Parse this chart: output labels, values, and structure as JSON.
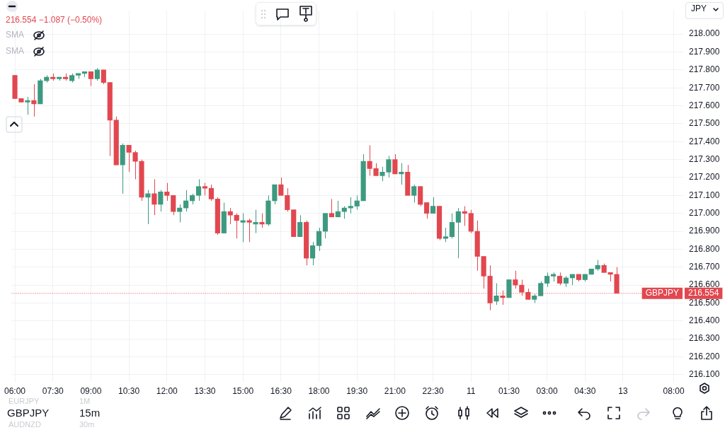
{
  "chart_data": {
    "type": "candlestick",
    "categories": [
      "06:00",
      null,
      null,
      null,
      null,
      null,
      "07:30",
      null,
      null,
      null,
      null,
      null,
      "09:00",
      null,
      null,
      null,
      null,
      null,
      "10:30",
      null,
      null,
      null,
      null,
      null,
      "12:00",
      null,
      null,
      null,
      null,
      null,
      "13:30",
      null,
      null,
      null,
      null,
      null,
      "15:00",
      null,
      null,
      null,
      null,
      null,
      "16:30",
      null,
      null,
      null,
      null,
      null,
      "18:00",
      null,
      null,
      null,
      null,
      null,
      "19:30",
      null,
      null,
      null,
      null,
      null,
      "21:00",
      null,
      null,
      null,
      null,
      null,
      "22:30",
      null,
      null,
      null,
      null,
      null,
      "11",
      null,
      null,
      null,
      null,
      null,
      "01:30",
      null,
      null,
      null,
      null,
      null,
      "03:00",
      null,
      null,
      null,
      null,
      null,
      "04:30",
      null,
      null,
      null,
      null,
      null,
      "13",
      null,
      null,
      null,
      null,
      null,
      null,
      null,
      "08:00",
      null
    ],
    "ohlc": [
      [
        217.77,
        217.77,
        217.64,
        217.64
      ],
      [
        217.64,
        217.64,
        217.62,
        217.62
      ],
      [
        217.62,
        217.65,
        217.55,
        217.63
      ],
      [
        217.63,
        217.72,
        217.54,
        217.61
      ],
      [
        217.61,
        217.75,
        217.61,
        217.74
      ],
      [
        217.74,
        217.77,
        217.73,
        217.76
      ],
      [
        217.76,
        217.78,
        217.74,
        217.75
      ],
      [
        217.75,
        217.76,
        217.74,
        217.76
      ],
      [
        217.76,
        217.78,
        217.74,
        217.75
      ],
      [
        217.74,
        217.78,
        217.73,
        217.77
      ],
      [
        217.77,
        217.78,
        217.75,
        217.78
      ],
      [
        217.78,
        217.79,
        217.76,
        217.79
      ],
      [
        217.79,
        217.79,
        217.71,
        217.75
      ],
      [
        217.75,
        217.81,
        217.74,
        217.8
      ],
      [
        217.8,
        217.8,
        217.72,
        217.73
      ],
      [
        217.73,
        217.73,
        217.32,
        217.52
      ],
      [
        217.52,
        217.54,
        217.27,
        217.27
      ],
      [
        217.27,
        217.39,
        217.11,
        217.38
      ],
      [
        217.38,
        217.38,
        217.23,
        217.34
      ],
      [
        217.34,
        217.35,
        217.19,
        217.29
      ],
      [
        217.29,
        217.3,
        217.07,
        217.09
      ],
      [
        217.09,
        217.13,
        216.94,
        217.11
      ],
      [
        217.11,
        217.19,
        216.99,
        217.05
      ],
      [
        217.05,
        217.13,
        217.01,
        217.12
      ],
      [
        217.12,
        217.17,
        217.07,
        217.1
      ],
      [
        217.1,
        217.1,
        216.99,
        217.01
      ],
      [
        217.01,
        217.05,
        216.95,
        217.03
      ],
      [
        217.03,
        217.13,
        217.01,
        217.07
      ],
      [
        217.07,
        217.11,
        217.05,
        217.1
      ],
      [
        217.1,
        217.19,
        217.07,
        217.15
      ],
      [
        217.15,
        217.17,
        217.1,
        217.14
      ],
      [
        217.14,
        217.16,
        217.07,
        217.08
      ],
      [
        217.08,
        217.09,
        216.88,
        216.89
      ],
      [
        216.89,
        217.06,
        216.89,
        217.01
      ],
      [
        217.01,
        217.03,
        216.94,
        216.99
      ],
      [
        216.99,
        217,
        216.86,
        216.96
      ],
      [
        216.95,
        217,
        216.84,
        216.96
      ],
      [
        216.96,
        216.97,
        216.84,
        216.95
      ],
      [
        216.94,
        217.02,
        216.89,
        216.95
      ],
      [
        216.95,
        217,
        216.92,
        216.94
      ],
      [
        216.94,
        217.1,
        216.93,
        217.07
      ],
      [
        217.07,
        217.16,
        217.05,
        217.16
      ],
      [
        217.16,
        217.2,
        217.1,
        217.1
      ],
      [
        217.1,
        217.14,
        217.01,
        217.02
      ],
      [
        217.02,
        217.02,
        216.87,
        216.87
      ],
      [
        216.87,
        216.99,
        216.87,
        216.95
      ],
      [
        216.95,
        216.96,
        216.71,
        216.75
      ],
      [
        216.75,
        216.84,
        216.71,
        216.82
      ],
      [
        216.82,
        216.92,
        216.79,
        216.9
      ],
      [
        216.9,
        217,
        216.86,
        217
      ],
      [
        217,
        217.08,
        216.98,
        216.98
      ],
      [
        216.98,
        217.07,
        216.98,
        217.01
      ],
      [
        217.01,
        217.04,
        216.97,
        217.03
      ],
      [
        217.03,
        217.09,
        217,
        217.04
      ],
      [
        217.04,
        217.1,
        217.02,
        217.07
      ],
      [
        217.07,
        217.33,
        217.07,
        217.29
      ],
      [
        217.29,
        217.38,
        217.21,
        217.25
      ],
      [
        217.25,
        217.28,
        217.21,
        217.21
      ],
      [
        217.21,
        217.26,
        217.18,
        217.23
      ],
      [
        217.23,
        217.32,
        217.2,
        217.3
      ],
      [
        217.3,
        217.33,
        217.22,
        217.22
      ],
      [
        217.22,
        217.28,
        217.16,
        217.23
      ],
      [
        217.23,
        217.27,
        217.1,
        217.1
      ],
      [
        217.1,
        217.16,
        217.06,
        217.15
      ],
      [
        217.15,
        217.15,
        217.04,
        217.05
      ],
      [
        217.06,
        217.06,
        216.97,
        217
      ],
      [
        217,
        217.09,
        217,
        217.04
      ],
      [
        217.04,
        217.04,
        216.85,
        216.86
      ],
      [
        216.86,
        216.92,
        216.84,
        216.87
      ],
      [
        216.87,
        217,
        216.86,
        216.95
      ],
      [
        216.95,
        217.03,
        216.75,
        217.01
      ],
      [
        217.01,
        217.04,
        216.93,
        217
      ],
      [
        217,
        217.02,
        216.89,
        216.9
      ],
      [
        216.9,
        216.96,
        216.68,
        216.76
      ],
      [
        216.76,
        216.76,
        216.58,
        216.65
      ],
      [
        216.65,
        216.71,
        216.46,
        216.5
      ],
      [
        216.51,
        216.61,
        216.49,
        216.54
      ],
      [
        216.54,
        216.57,
        216.49,
        216.53
      ],
      [
        216.53,
        216.63,
        216.53,
        216.63
      ],
      [
        216.63,
        216.68,
        216.58,
        216.6
      ],
      [
        216.6,
        216.63,
        216.54,
        216.56
      ],
      [
        216.56,
        216.58,
        216.52,
        216.52
      ],
      [
        216.52,
        216.55,
        216.5,
        216.54
      ],
      [
        216.54,
        216.62,
        216.54,
        216.61
      ],
      [
        216.61,
        216.67,
        216.59,
        216.65
      ],
      [
        216.65,
        216.67,
        216.62,
        216.66
      ],
      [
        216.65,
        216.67,
        216.6,
        216.61
      ],
      [
        216.61,
        216.65,
        216.59,
        216.64
      ],
      [
        216.64,
        216.66,
        216.6,
        216.66
      ],
      [
        216.66,
        216.66,
        216.62,
        216.63
      ],
      [
        216.63,
        216.66,
        216.62,
        216.66
      ],
      [
        216.66,
        216.69,
        216.66,
        216.69
      ],
      [
        216.69,
        216.74,
        216.68,
        216.71
      ],
      [
        216.71,
        216.72,
        216.67,
        216.67
      ],
      [
        216.67,
        216.67,
        216.62,
        216.66
      ],
      [
        216.66,
        216.7,
        216.554,
        216.554
      ],
      null,
      null,
      null,
      null,
      null,
      null,
      null,
      null,
      null,
      null
    ],
    "colors": [
      "#e2474f",
      "#e2474f",
      "#3d9a80",
      "#e2474f",
      "#3d9a80",
      "#3d9a80",
      "#e2474f",
      "#3d9a80",
      "#e2474f",
      "#3d9a80",
      "#3d9a80",
      "#3d9a80",
      "#e2474f",
      "#3d9a80",
      "#e2474f",
      "#e2474f",
      "#e2474f",
      "#3d9a80",
      "#e2474f",
      "#e2474f",
      "#e2474f",
      "#3d9a80",
      "#e2474f",
      "#3d9a80",
      "#e2474f",
      "#e2474f",
      "#3d9a80",
      "#3d9a80",
      "#3d9a80",
      "#3d9a80",
      "#e2474f",
      "#e2474f",
      "#e2474f",
      "#3d9a80",
      "#e2474f",
      "#e2474f",
      "#3d9a80",
      "#e2474f",
      "#3d9a80",
      "#e2474f",
      "#3d9a80",
      "#3d9a80",
      "#e2474f",
      "#e2474f",
      "#e2474f",
      "#3d9a80",
      "#e2474f",
      "#3d9a80",
      "#3d9a80",
      "#3d9a80",
      "#e2474f",
      "#3d9a80",
      "#3d9a80",
      "#3d9a80",
      "#3d9a80",
      "#3d9a80",
      "#e2474f",
      "#e2474f",
      "#3d9a80",
      "#3d9a80",
      "#e2474f",
      "#3d9a80",
      "#e2474f",
      "#3d9a80",
      "#e2474f",
      "#e2474f",
      "#3d9a80",
      "#e2474f",
      "#3d9a80",
      "#3d9a80",
      "#3d9a80",
      "#e2474f",
      "#e2474f",
      "#e2474f",
      "#e2474f",
      "#e2474f",
      "#3d9a80",
      "#e2474f",
      "#3d9a80",
      "#e2474f",
      "#e2474f",
      "#e2474f",
      "#3d9a80",
      "#3d9a80",
      "#3d9a80",
      "#3d9a80",
      "#e2474f",
      "#3d9a80",
      "#3d9a80",
      "#e2474f",
      "#3d9a80",
      "#3d9a80",
      "#3d9a80",
      "#e2474f",
      "#e2474f",
      "#e2474f",
      null,
      null,
      null,
      null,
      null,
      null,
      null,
      null,
      null,
      null
    ],
    "ylim": [
      216.06,
      218.13
    ],
    "yticks": [
      {
        "value": 216.1,
        "label": "216.100"
      },
      {
        "value": 216.2,
        "label": "216.200"
      },
      {
        "value": 216.3,
        "label": "216.300"
      },
      {
        "value": 216.4,
        "label": "216.400"
      },
      {
        "value": 216.5,
        "label": "216.500"
      },
      {
        "value": 216.6,
        "label": "216.600"
      },
      {
        "value": 216.7,
        "label": "216.700"
      },
      {
        "value": 216.8,
        "label": "216.800"
      },
      {
        "value": 216.9,
        "label": "216.900"
      },
      {
        "value": 217,
        "label": "217.000"
      },
      {
        "value": 217.1,
        "label": "217.100"
      },
      {
        "value": 217.2,
        "label": "217.200"
      },
      {
        "value": 217.3,
        "label": "217.300"
      },
      {
        "value": 217.4,
        "label": "217.400"
      },
      {
        "value": 217.5,
        "label": "217.500"
      },
      {
        "value": 217.6,
        "label": "217.600"
      },
      {
        "value": 217.7,
        "label": "217.700"
      },
      {
        "value": 217.8,
        "label": "217.800"
      },
      {
        "value": 217.9,
        "label": "217.900"
      },
      {
        "value": 218,
        "label": "218.000"
      }
    ],
    "grid": true,
    "ref_lines": [
      {
        "axis": "y",
        "value": 216.554,
        "label": "GBPJPY",
        "color": "#e2474f",
        "line_style": "dotted"
      }
    ],
    "annotations": [
      "216.554 −1.087 (−0.50%)",
      "SMA",
      "SMA",
      "JPY",
      "GBPJPY",
      "15m",
      "EURJPY",
      "1M",
      "AUDNZD",
      "30m",
      "216.554"
    ]
  }
}
